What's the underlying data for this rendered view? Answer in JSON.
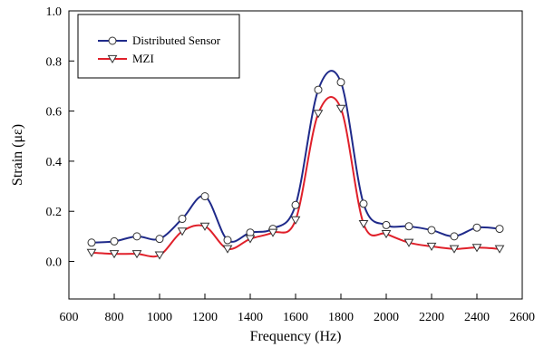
{
  "chart_data": {
    "type": "line",
    "xlabel": "Frequency (Hz)",
    "ylabel": "Strain (με)",
    "xlim": [
      600,
      2600
    ],
    "ylim": [
      -0.15,
      1.0
    ],
    "xticks": [
      600,
      800,
      1000,
      1200,
      1400,
      1600,
      1800,
      2000,
      2200,
      2400,
      2600
    ],
    "yticks": [
      0.0,
      0.2,
      0.4,
      0.6,
      0.8,
      1.0
    ],
    "grid": false,
    "legend_position": "top-left",
    "series": [
      {
        "name": "Distributed Sensor",
        "color": "#1f2a8a",
        "marker": "circle",
        "x": [
          700,
          800,
          900,
          1000,
          1100,
          1200,
          1300,
          1400,
          1500,
          1600,
          1700,
          1800,
          1900,
          2000,
          2100,
          2200,
          2300,
          2400,
          2500
        ],
        "y": [
          0.075,
          0.08,
          0.1,
          0.09,
          0.17,
          0.26,
          0.085,
          0.115,
          0.13,
          0.225,
          0.685,
          0.715,
          0.23,
          0.145,
          0.14,
          0.125,
          0.1,
          0.135,
          0.13
        ]
      },
      {
        "name": "MZI",
        "color": "#e0202a",
        "marker": "triangle-down",
        "x": [
          700,
          800,
          900,
          1000,
          1100,
          1200,
          1300,
          1400,
          1500,
          1600,
          1700,
          1800,
          1900,
          2000,
          2100,
          2200,
          2300,
          2400,
          2500
        ],
        "y": [
          0.035,
          0.03,
          0.03,
          0.025,
          0.12,
          0.14,
          0.05,
          0.09,
          0.115,
          0.165,
          0.59,
          0.61,
          0.15,
          0.11,
          0.075,
          0.06,
          0.05,
          0.055,
          0.05
        ]
      }
    ]
  }
}
